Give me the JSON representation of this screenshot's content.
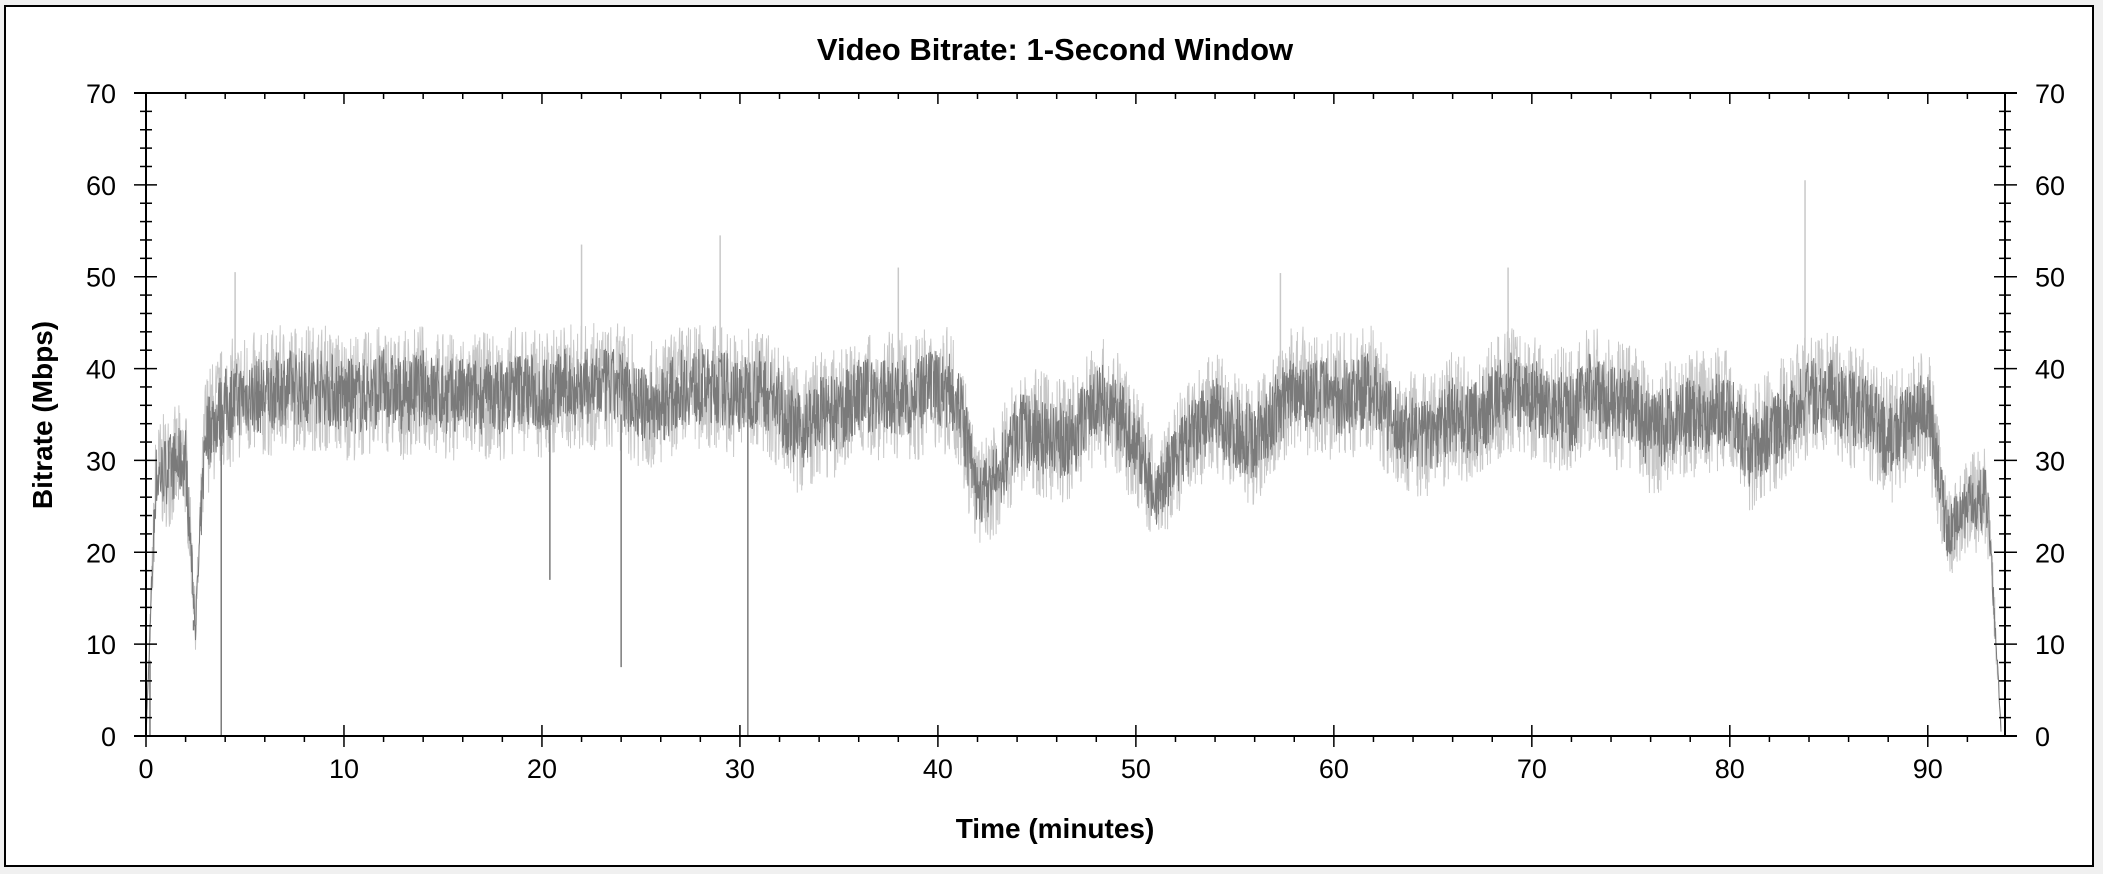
{
  "chart_data": {
    "type": "line",
    "title": "Video Bitrate: 1-Second Window",
    "xlabel": "Time (minutes)",
    "ylabel": "Bitrate (Mbps)",
    "xlim": [
      0,
      93.9
    ],
    "ylim": [
      0,
      70
    ],
    "x_ticks": [
      0,
      10,
      20,
      30,
      40,
      50,
      60,
      70,
      80,
      90
    ],
    "y_ticks": [
      0,
      10,
      20,
      30,
      40,
      50,
      60,
      70
    ],
    "right_axis_mirrored": true,
    "grid": false,
    "legend": "none",
    "colors": {
      "line": "#7a7a7a",
      "envelope": "#c8c8c8"
    },
    "series": [
      {
        "x": [
          0,
          0.5,
          1,
          2,
          2.5,
          3,
          4,
          5,
          6,
          7,
          8,
          9,
          10,
          11,
          12,
          13,
          14,
          15,
          16,
          17,
          18,
          19,
          20,
          21,
          22,
          23,
          24,
          25,
          26,
          27,
          28,
          29,
          30,
          31,
          32,
          33,
          34,
          35,
          36,
          37,
          38,
          39,
          40,
          41,
          42,
          43,
          44,
          45,
          46,
          47,
          48,
          49,
          50,
          51,
          52,
          53,
          54,
          55,
          56,
          57,
          58,
          59,
          60,
          61,
          62,
          63,
          64,
          65,
          66,
          67,
          68,
          69,
          70,
          71,
          72,
          73,
          74,
          75,
          76,
          77,
          78,
          79,
          80,
          81,
          82,
          83,
          84,
          85,
          86,
          87,
          88,
          89,
          90,
          91,
          92,
          93,
          93.7
        ],
        "y": [
          0,
          28,
          29,
          30,
          12,
          33,
          36,
          37,
          37,
          38,
          38,
          38,
          37,
          37,
          38,
          37,
          38,
          37,
          37,
          37,
          37,
          38,
          37,
          38,
          38,
          38,
          38,
          36,
          36,
          38,
          38,
          38,
          37,
          38,
          36,
          33,
          35,
          35,
          37,
          37,
          37,
          37,
          38,
          37,
          26,
          28,
          33,
          33,
          32,
          33,
          37,
          35,
          32,
          26,
          30,
          33,
          35,
          33,
          32,
          35,
          38,
          37,
          37,
          37,
          38,
          34,
          33,
          33,
          35,
          34,
          36,
          38,
          37,
          36,
          35,
          38,
          36,
          36,
          33,
          34,
          35,
          35,
          36,
          31,
          33,
          35,
          37,
          37,
          36,
          35,
          32,
          34,
          36,
          22,
          25,
          26,
          1
        ]
      }
    ],
    "annotations_extremes": {
      "dips": [
        [
          0.2,
          0
        ],
        [
          2.4,
          11.5
        ],
        [
          3.8,
          0
        ],
        [
          20.4,
          17
        ],
        [
          24,
          7.5
        ],
        [
          30.4,
          0
        ]
      ],
      "peaks": [
        [
          4.5,
          50.5
        ],
        [
          22,
          53.5
        ],
        [
          29,
          54.5
        ],
        [
          38,
          51
        ],
        [
          57.3,
          50.4
        ],
        [
          68.8,
          51
        ],
        [
          83.8,
          60.5
        ]
      ]
    }
  }
}
